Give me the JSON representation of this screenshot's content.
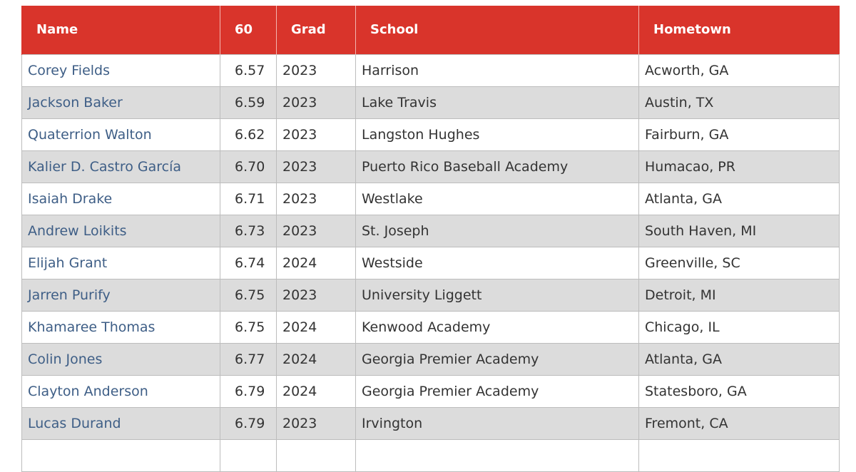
{
  "table": {
    "header": [
      "Name",
      "60",
      "Grad",
      "School",
      "Hometown"
    ],
    "rows": [
      [
        "Corey Fields",
        "6.57",
        "2023",
        "Harrison",
        "Acworth, GA"
      ],
      [
        "Jackson Baker",
        "6.59",
        "2023",
        "Lake Travis",
        "Austin, TX"
      ],
      [
        "Quaterrion Walton",
        "6.62",
        "2023",
        "Langston Hughes",
        "Fairburn, GA"
      ],
      [
        "Kalier D. Castro García",
        "6.70",
        "2023",
        "Puerto Rico Baseball Academy",
        "Humacao, PR"
      ],
      [
        "Isaiah Drake",
        "6.71",
        "2023",
        "Westlake",
        "Atlanta, GA"
      ],
      [
        "Andrew Loikits",
        "6.73",
        "2023",
        "St. Joseph",
        "South Haven, MI"
      ],
      [
        "Elijah Grant",
        "6.74",
        "2024",
        "Westside",
        "Greenville, SC"
      ],
      [
        "Jarren Purify",
        "6.75",
        "2023",
        "University Liggett",
        "Detroit, MI"
      ],
      [
        "Khamaree Thomas",
        "6.75",
        "2024",
        "Kenwood Academy",
        "Chicago, IL"
      ],
      [
        "Colin Jones",
        "6.77",
        "2024",
        "Georgia Premier Academy",
        "Atlanta, GA"
      ],
      [
        "Clayton Anderson",
        "6.79",
        "2024",
        "Georgia Premier Academy",
        "Statesboro, GA"
      ],
      [
        "Lucas Durand",
        "6.79",
        "2023",
        "Irvington",
        "Fremont, CA"
      ]
    ]
  }
}
